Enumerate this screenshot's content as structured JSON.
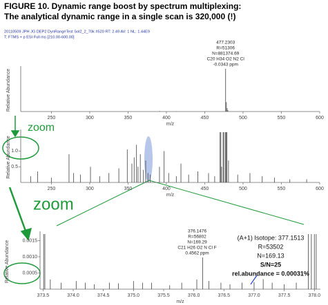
{
  "header": {
    "title": [
      "FIGURE 10. Dynamic range boost by spectrum multiplexing:",
      "The analytical dynamic range in a single scan is 320,000 (!)"
    ],
    "scan_info": [
      "20110509 JPH JG DEP2 DynRangeTest Sol2_2_70k #520  RT: 2.49  AV: 1  NL: 1.44E9",
      "T: FTMS + p ESI Full ms [210.00-600.00]"
    ]
  },
  "zoom_labels": [
    "zoom",
    "zoom"
  ],
  "chart_data": [
    {
      "type": "bar",
      "xlabel": "m/z",
      "ylabel": "Relative Abundance",
      "color": "#555555",
      "xlim": [
        210,
        600
      ],
      "ylim": [
        0,
        100
      ],
      "xticks": [
        250,
        300,
        350,
        400,
        450,
        500,
        550,
        600
      ],
      "x": [
        391.3,
        413.2,
        477.2303,
        478.23,
        479.23,
        480.2
      ],
      "values": [
        1.2,
        0.8,
        100,
        22,
        8,
        3
      ],
      "peak_label": [
        "477.2303",
        "R=51306",
        "N=881374.69",
        "C20 H34 O2 N2 Cl",
        "-0.0343 ppm"
      ]
    },
    {
      "type": "bar",
      "xlabel": "m/z",
      "ylabel": "Relative Abundance",
      "color": "#555555",
      "xlim": [
        210,
        600
      ],
      "ylim": [
        0,
        1.6
      ],
      "xticks": [
        250,
        300,
        350,
        400,
        450,
        500,
        550,
        600
      ],
      "yticks": [
        0.5,
        {
          "value": 1,
          "label": "1.0"
        }
      ],
      "x": [
        223,
        232,
        250,
        273,
        279,
        288,
        301,
        313,
        325,
        338,
        349,
        355,
        358,
        361,
        363,
        366,
        370,
        373,
        376,
        379,
        391,
        397,
        403,
        413,
        419,
        429,
        441,
        455,
        463,
        470,
        471,
        472,
        474,
        475,
        477,
        478,
        479,
        481,
        493,
        509,
        525,
        541,
        561,
        583
      ],
      "values": [
        0.2,
        0.35,
        0.15,
        0.9,
        0.3,
        0.25,
        0.5,
        0.2,
        0.3,
        0.45,
        1.05,
        0.6,
        0.8,
        1.2,
        0.5,
        0.9,
        0.4,
        0.7,
        0.3,
        0.25,
        0.5,
        1.0,
        0.3,
        0.2,
        0.6,
        0.25,
        0.35,
        0.3,
        0.2,
        1.6,
        1.6,
        0.5,
        1.6,
        1.6,
        1.6,
        1.6,
        1.6,
        0.7,
        0.25,
        0.3,
        0.2,
        0.15,
        0.1,
        0.1
      ]
    },
    {
      "type": "bar",
      "xlabel": "m/z",
      "ylabel": "Relative Abundance",
      "color": "#555555",
      "xlim": [
        373.45,
        378.1
      ],
      "ylim": [
        0,
        0.0017
      ],
      "xticks": [
        373.5,
        {
          "value": 374,
          "label": "374.0"
        },
        374.5,
        {
          "value": 375,
          "label": "375.0"
        },
        375.5,
        {
          "value": 376,
          "label": "376.0"
        },
        376.5,
        {
          "value": 377,
          "label": "377.0"
        },
        377.5,
        {
          "value": 378,
          "label": "378.0"
        }
      ],
      "yticks": [
        0.0005,
        {
          "value": 0.001,
          "label": "0.0010"
        },
        0.0015
      ],
      "x": [
        373.51,
        373.53,
        373.62,
        373.8,
        374.05,
        374.2,
        374.35,
        374.6,
        374.75,
        375.0,
        375.15,
        375.3,
        375.6,
        375.8,
        376.05,
        376.1476,
        376.25,
        376.45,
        376.6,
        376.8,
        377.0,
        377.1513,
        377.3,
        377.5,
        377.7,
        377.9,
        377.95,
        378.0,
        378.03
      ],
      "values": [
        0.0017,
        0.0017,
        0.0003,
        0.0002,
        0.00025,
        0.0002,
        0.00015,
        0.0002,
        0.00018,
        0.00025,
        0.0002,
        0.0002,
        0.00012,
        0.0002,
        0.0003,
        0.00098,
        0.00025,
        0.0002,
        0.00015,
        0.0002,
        0.00022,
        0.00031,
        0.0002,
        0.00015,
        0.0002,
        0.0017,
        0.0017,
        0.0017,
        0.0017
      ],
      "peak_label": [
        "376.1476",
        "R=56802",
        "N=169.29",
        "C21 H26 O2 N Cl F",
        "0.4562 ppm"
      ],
      "isotope_label": [
        "(A+1) Isotope: 377.1513",
        "R=53502",
        "N=169.13",
        "S/N=25",
        "rel.abundance = 0.00031%"
      ]
    }
  ]
}
